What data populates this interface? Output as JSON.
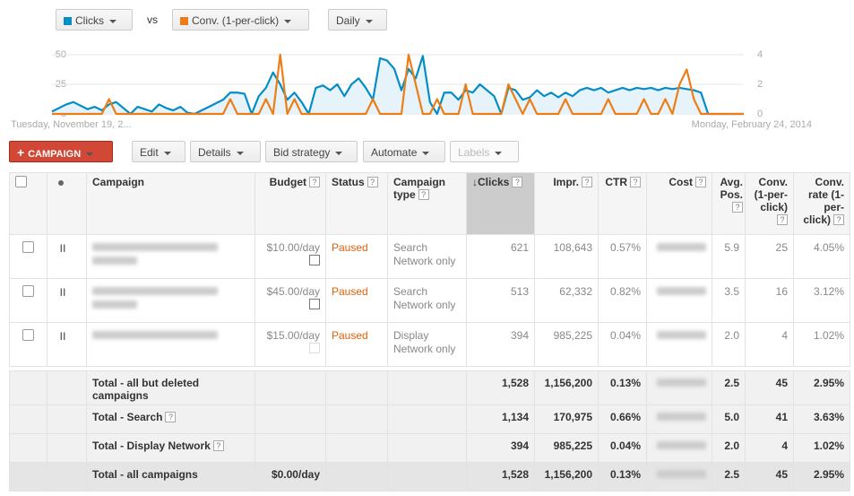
{
  "toolbar": {
    "metric1": "Clicks",
    "vs": "vs",
    "metric2": "Conv. (1-per-click)",
    "period": "Daily"
  },
  "chart_data": {
    "type": "line",
    "series": [
      {
        "name": "Clicks",
        "color": "#058dc7",
        "values": [
          2,
          5,
          8,
          10,
          7,
          4,
          6,
          3,
          8,
          10,
          5,
          0,
          6,
          4,
          2,
          8,
          5,
          3,
          6,
          1,
          0,
          3,
          6,
          9,
          12,
          18,
          18,
          17,
          0,
          15,
          22,
          35,
          25,
          12,
          18,
          10,
          0,
          22,
          24,
          20,
          25,
          15,
          25,
          30,
          22,
          12,
          47,
          45,
          38,
          20,
          38,
          30,
          49,
          10,
          0,
          18,
          18,
          12,
          20,
          18,
          25,
          20,
          15,
          0,
          22,
          20,
          12,
          14,
          20,
          15,
          18,
          14,
          18,
          15,
          20,
          22,
          20,
          22,
          18,
          20,
          22,
          20,
          22,
          21,
          22,
          20,
          22,
          21,
          22,
          21,
          20,
          18,
          0,
          0,
          0,
          0,
          0,
          0
        ]
      },
      {
        "name": "Conv. (1-per-click)",
        "color": "#ed7e17",
        "axis": "y2",
        "values": [
          0,
          0,
          0,
          0,
          0,
          0,
          0,
          0,
          1,
          0,
          0,
          0,
          0,
          0,
          0,
          0,
          0,
          0,
          0,
          0,
          0,
          0,
          0,
          0,
          0,
          1,
          0,
          0,
          0,
          0,
          1,
          0,
          4,
          0,
          1,
          0,
          0,
          0,
          0,
          0,
          0,
          0,
          0,
          0,
          0,
          1,
          0,
          0,
          0,
          0,
          4,
          2,
          0,
          0,
          1,
          0,
          0,
          0,
          2,
          0,
          0,
          0,
          0,
          0,
          2,
          1,
          0,
          1,
          0,
          0,
          0,
          0,
          1,
          0,
          0,
          0,
          0,
          0,
          1,
          0,
          0,
          0,
          0,
          1,
          0,
          0,
          1,
          0,
          2,
          3,
          1,
          0,
          0,
          0,
          0,
          0,
          0,
          0
        ]
      }
    ],
    "ylim": [
      0,
      50
    ],
    "yticks": [
      0,
      25,
      50
    ],
    "y2lim": [
      0,
      4
    ],
    "y2ticks": [
      0,
      2,
      4
    ],
    "start_label": "Tuesday, November 19, 2...",
    "end_label": "Monday, February 24, 2014",
    "grid": true
  },
  "actions": {
    "campaign": "CAMPAIGN",
    "edit": "Edit",
    "details": "Details",
    "bid_strategy": "Bid strategy",
    "automate": "Automate",
    "labels": "Labels"
  },
  "table": {
    "headers": {
      "campaign": "Campaign",
      "budget": "Budget",
      "status": "Status",
      "type": "Campaign type",
      "clicks": "Clicks",
      "impressions": "Impr.",
      "ctr": "CTR",
      "cost": "Cost",
      "avg_pos": "Avg. Pos.",
      "conv": "Conv. (1-per-click)",
      "conv_rate": "Conv. rate (1-per-click)"
    },
    "rows": [
      {
        "budget": "$10.00/day",
        "status": "Paused",
        "type": "Search Network only",
        "clicks": "621",
        "impressions": "108,643",
        "ctr": "0.57%",
        "avg_pos": "5.9",
        "conv": "25",
        "conv_rate": "4.05%"
      },
      {
        "budget": "$45.00/day",
        "status": "Paused",
        "type": "Search Network only",
        "clicks": "513",
        "impressions": "62,332",
        "ctr": "0.82%",
        "avg_pos": "3.5",
        "conv": "16",
        "conv_rate": "3.12%"
      },
      {
        "budget": "$15.00/day",
        "status": "Paused",
        "type": "Display Network only",
        "clicks": "394",
        "impressions": "985,225",
        "ctr": "0.04%",
        "avg_pos": "2.0",
        "conv": "4",
        "conv_rate": "1.02%"
      }
    ],
    "totals": [
      {
        "label": "Total - all but deleted campaigns",
        "clicks": "1,528",
        "impressions": "1,156,200",
        "ctr": "0.13%",
        "avg_pos": "2.5",
        "conv": "45",
        "conv_rate": "2.95%"
      },
      {
        "label": "Total - Search",
        "clicks": "1,134",
        "impressions": "170,975",
        "ctr": "0.66%",
        "avg_pos": "5.0",
        "conv": "41",
        "conv_rate": "3.63%"
      },
      {
        "label": "Total - Display Network",
        "clicks": "394",
        "impressions": "985,225",
        "ctr": "0.04%",
        "avg_pos": "2.0",
        "conv": "4",
        "conv_rate": "1.02%"
      },
      {
        "label": "Total - all campaigns",
        "budget": "$0.00/day",
        "clicks": "1,528",
        "impressions": "1,156,200",
        "ctr": "0.13%",
        "avg_pos": "2.5",
        "conv": "45",
        "conv_rate": "2.95%"
      }
    ]
  }
}
